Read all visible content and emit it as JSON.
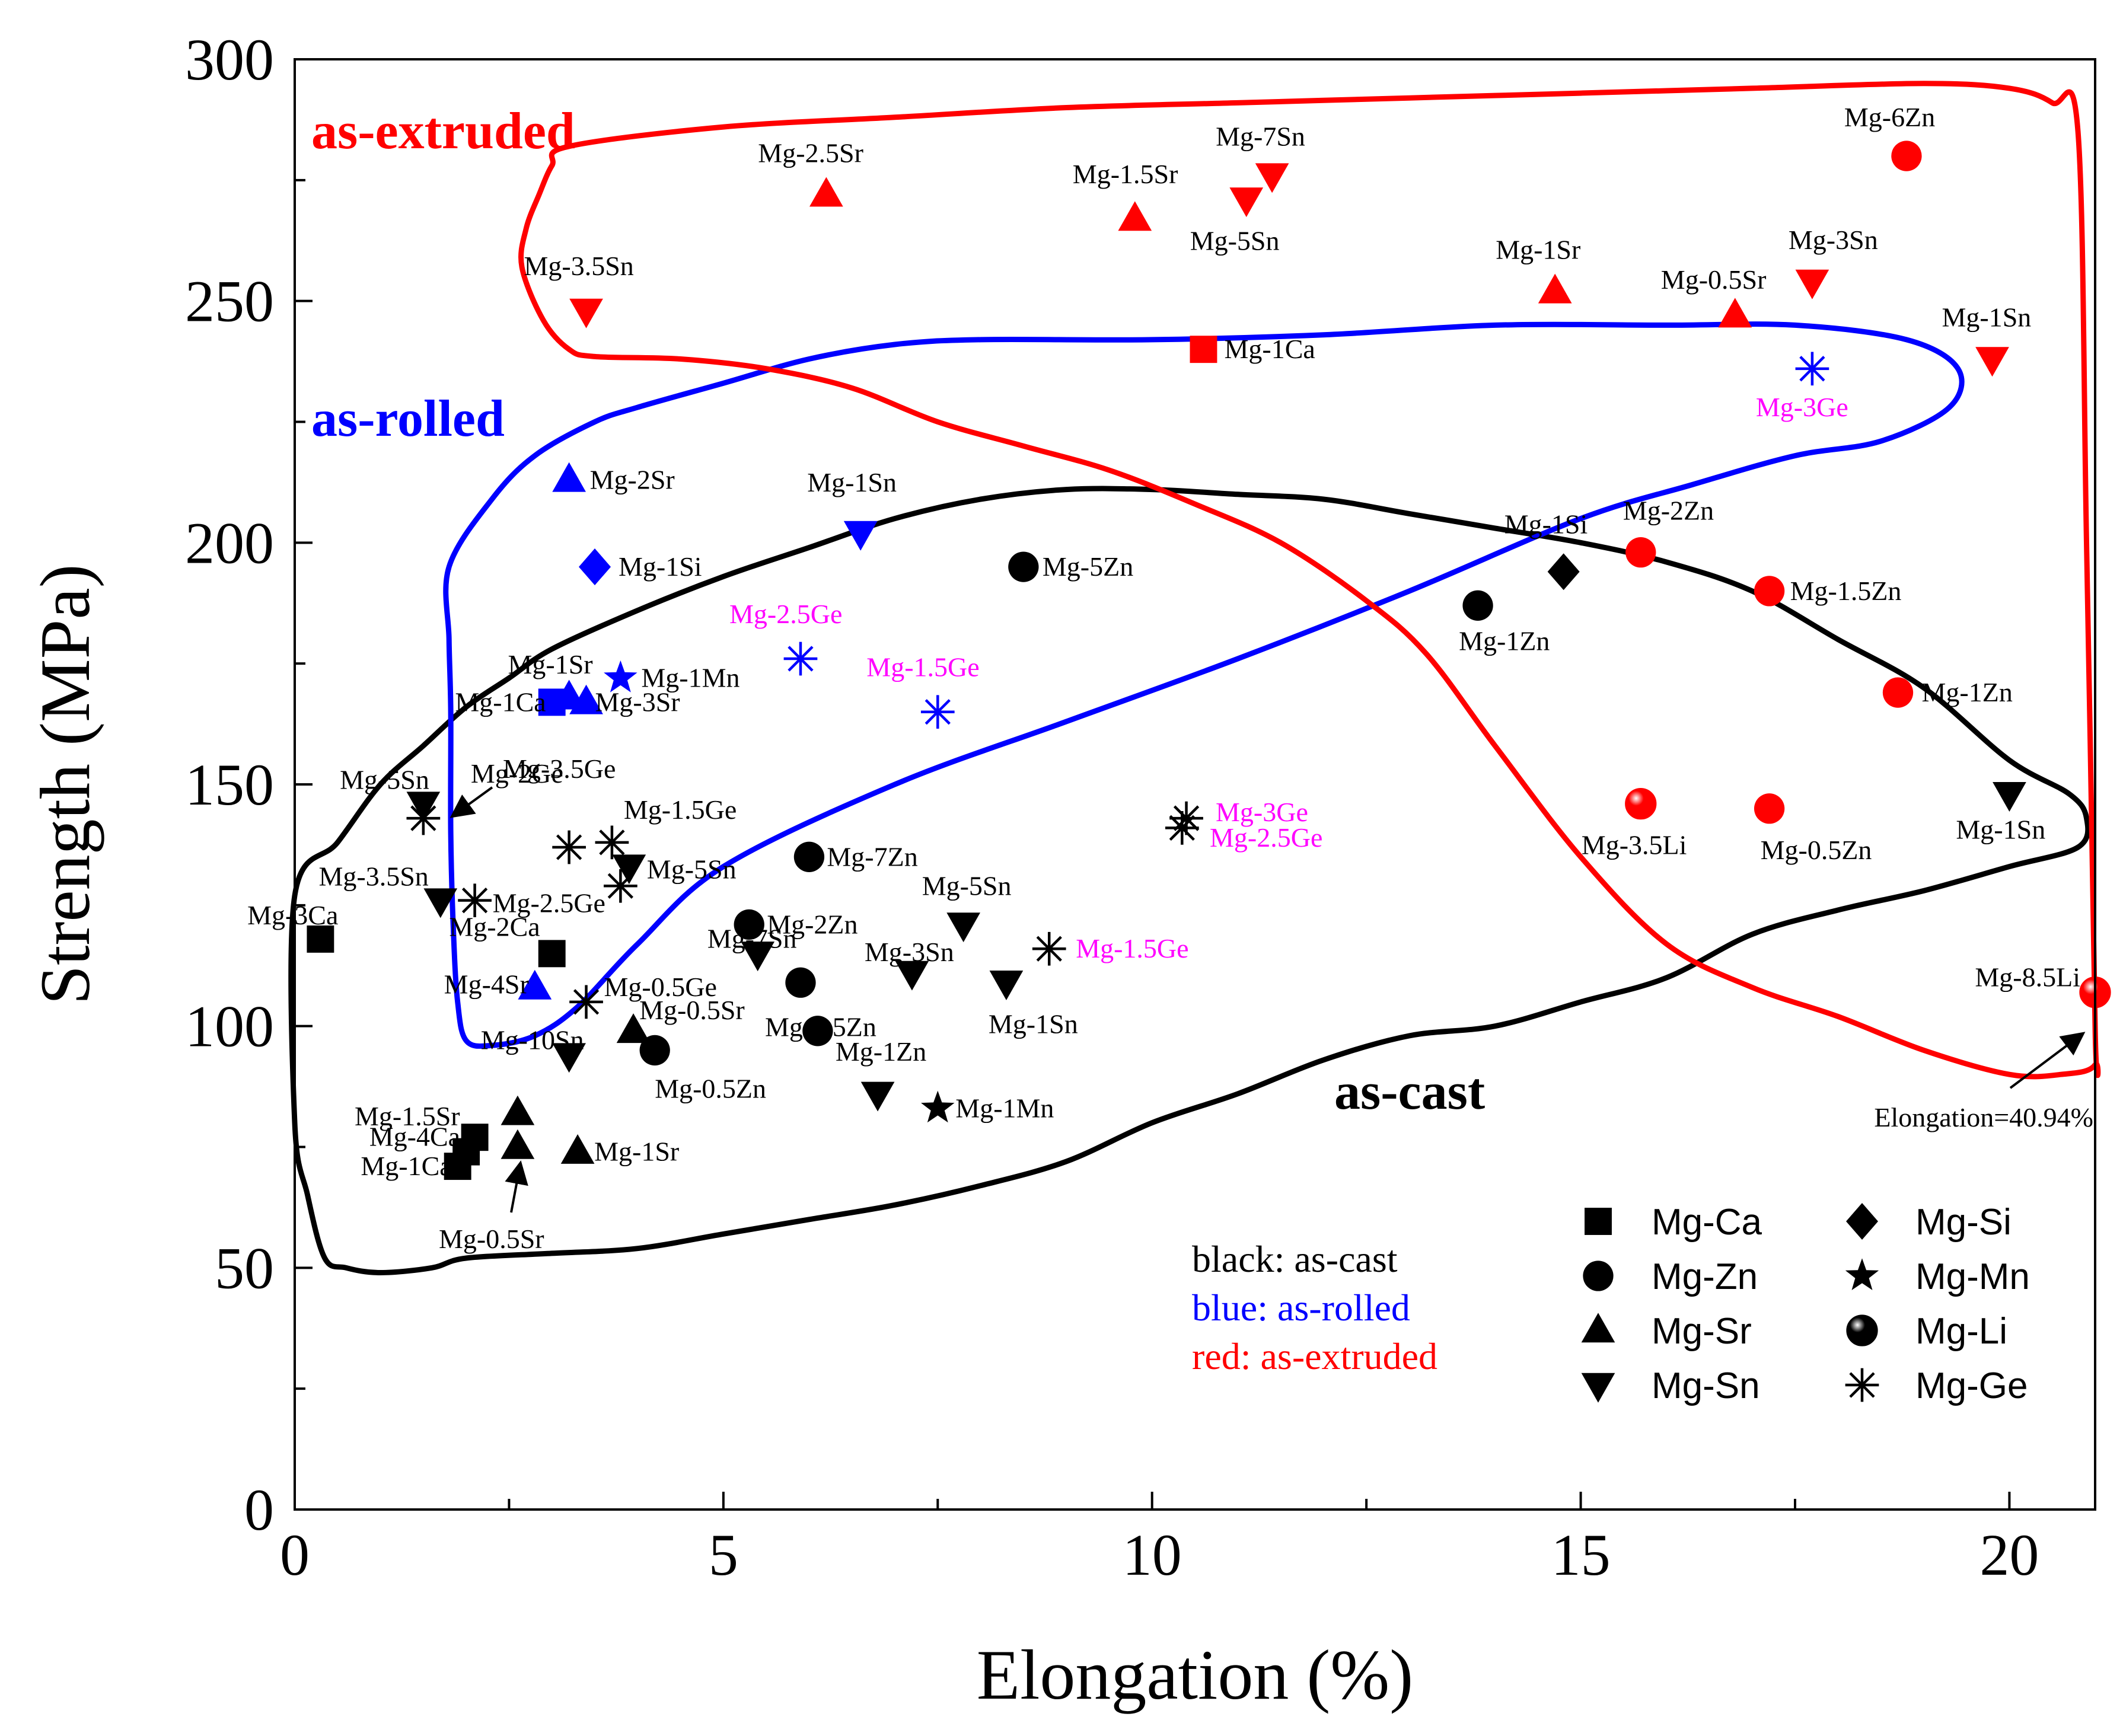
{
  "chart_data": {
    "type": "scatter",
    "xlabel": "Elongation (%)",
    "ylabel": "Strength (MPa)",
    "xlim": [
      0,
      21
    ],
    "ylim": [
      0,
      300
    ],
    "x_ticks": [
      "0",
      "5",
      "10",
      "15",
      "20"
    ],
    "y_ticks": [
      "0",
      "50",
      "100",
      "150",
      "200",
      "250",
      "300"
    ],
    "grid": false,
    "colors": {
      "as-cast": "#000000",
      "as-rolled": "#0000ff",
      "as-extruded": "#ff0000",
      "ge_label": "#ff00ff"
    },
    "regions": [
      {
        "name": "as-cast",
        "label": "as-cast",
        "color": "#000000",
        "outline": [
          [
            0,
            127
          ],
          [
            0.5,
            138
          ],
          [
            1,
            150
          ],
          [
            1.5,
            158
          ],
          [
            2,
            166
          ],
          [
            2.5,
            172
          ],
          [
            3,
            178
          ],
          [
            4,
            186
          ],
          [
            5,
            193
          ],
          [
            6,
            199
          ],
          [
            7,
            205
          ],
          [
            8,
            209
          ],
          [
            9,
            211
          ],
          [
            10,
            211
          ],
          [
            11,
            210
          ],
          [
            12,
            209
          ],
          [
            13,
            206
          ],
          [
            14,
            203
          ],
          [
            15,
            200
          ],
          [
            16,
            196
          ],
          [
            17,
            190
          ],
          [
            18,
            180
          ],
          [
            19,
            170
          ],
          [
            20,
            155
          ],
          [
            20.7,
            148
          ],
          [
            20.9,
            143
          ],
          [
            20.8,
            137
          ],
          [
            20,
            133
          ],
          [
            19,
            128
          ],
          [
            18,
            124
          ],
          [
            17,
            119
          ],
          [
            16,
            110
          ],
          [
            15,
            105
          ],
          [
            14,
            100
          ],
          [
            13,
            98
          ],
          [
            12,
            93
          ],
          [
            11,
            86
          ],
          [
            10,
            80
          ],
          [
            9,
            72
          ],
          [
            8,
            67
          ],
          [
            7,
            63
          ],
          [
            6,
            60
          ],
          [
            5,
            57
          ],
          [
            4,
            54
          ],
          [
            3,
            53
          ],
          [
            2,
            52
          ],
          [
            1.6,
            50
          ],
          [
            1,
            49
          ],
          [
            0.6,
            50
          ],
          [
            0.35,
            52
          ],
          [
            0.15,
            65
          ],
          [
            0,
            80
          ]
        ]
      },
      {
        "name": "as-rolled",
        "label": "as-rolled",
        "color": "#0000ff",
        "outline": [
          [
            1.8,
            195
          ],
          [
            2.3,
            209
          ],
          [
            2.8,
            218
          ],
          [
            3.5,
            225
          ],
          [
            4,
            228
          ],
          [
            5,
            233
          ],
          [
            6,
            238
          ],
          [
            7,
            241
          ],
          [
            8,
            242
          ],
          [
            10,
            242
          ],
          [
            12,
            243
          ],
          [
            14,
            245
          ],
          [
            16,
            245
          ],
          [
            17.5,
            245
          ],
          [
            18.8,
            242
          ],
          [
            19.4,
            236
          ],
          [
            19.3,
            228
          ],
          [
            18.5,
            221
          ],
          [
            17.5,
            218
          ],
          [
            16.3,
            212
          ],
          [
            15,
            205
          ],
          [
            13,
            190
          ],
          [
            11,
            176
          ],
          [
            9,
            163
          ],
          [
            7,
            150
          ],
          [
            5,
            133
          ],
          [
            4,
            117
          ],
          [
            3.3,
            104
          ],
          [
            2.8,
            98
          ],
          [
            2.3,
            96
          ],
          [
            2,
            97
          ],
          [
            1.9,
            105
          ],
          [
            1.85,
            120
          ],
          [
            1.82,
            140
          ],
          [
            1.82,
            165
          ],
          [
            1.8,
            180
          ]
        ]
      },
      {
        "name": "as-extruded",
        "label": "as-extruded",
        "color": "#ff0000",
        "outline": [
          [
            3.2,
            282
          ],
          [
            5,
            286
          ],
          [
            7,
            288
          ],
          [
            9,
            290
          ],
          [
            11,
            291
          ],
          [
            13,
            292
          ],
          [
            15,
            293
          ],
          [
            17,
            294
          ],
          [
            19,
            295
          ],
          [
            20,
            294
          ],
          [
            20.5,
            291
          ],
          [
            20.8,
            285
          ],
          [
            20.9,
            200
          ],
          [
            21,
            100
          ],
          [
            21,
            92
          ],
          [
            20.6,
            90
          ],
          [
            20,
            90
          ],
          [
            19,
            95
          ],
          [
            18,
            102
          ],
          [
            17,
            108
          ],
          [
            16,
            117
          ],
          [
            15,
            135
          ],
          [
            14,
            158
          ],
          [
            13.2,
            177
          ],
          [
            12.5,
            188
          ],
          [
            11.5,
            200
          ],
          [
            10.5,
            208
          ],
          [
            9.5,
            215
          ],
          [
            8.5,
            220
          ],
          [
            7.5,
            225
          ],
          [
            6.5,
            232
          ],
          [
            5.5,
            236
          ],
          [
            4.5,
            238
          ],
          [
            3.5,
            238.5
          ],
          [
            3.2,
            240
          ],
          [
            2.9,
            246
          ],
          [
            2.65,
            257
          ],
          [
            2.7,
            265
          ],
          [
            2.85,
            272
          ],
          [
            3,
            278
          ]
        ]
      }
    ],
    "series": [
      {
        "name": "as-cast",
        "color": "#000000",
        "points": [
          {
            "label": "Mg-3Ca",
            "type": "Mg-Ca",
            "x": 0.3,
            "y": 118
          },
          {
            "label": "Mg-2Ca",
            "type": "Mg-Ca",
            "x": 3.0,
            "y": 115
          },
          {
            "label": "Mg-1.5Sr",
            "type": "Mg-Ca",
            "x": 2.1,
            "y": 77
          },
          {
            "label": "Mg-4Ca",
            "type": "Mg-Ca",
            "x": 2.0,
            "y": 74
          },
          {
            "label": "Mg-1Ca",
            "type": "Mg-Ca",
            "x": 1.9,
            "y": 71
          },
          {
            "label": "Mg-5Zn",
            "type": "Mg-Zn",
            "x": 8.5,
            "y": 195
          },
          {
            "label": "Mg-1Zn",
            "type": "Mg-Zn",
            "x": 13.8,
            "y": 187
          },
          {
            "label": "Mg-7Zn",
            "type": "Mg-Zn",
            "x": 6.0,
            "y": 135
          },
          {
            "label": "Mg-2Zn",
            "type": "Mg-Zn",
            "x": 5.3,
            "y": 121
          },
          {
            "label": "Mg-1.5Zn",
            "type": "Mg-Zn",
            "x": 5.9,
            "y": 109
          },
          {
            "label": "Mg-1Zn",
            "type": "Mg-Zn",
            "x": 6.1,
            "y": 99
          },
          {
            "label": "Mg-0.5Zn",
            "type": "Mg-Zn",
            "x": 4.2,
            "y": 95
          },
          {
            "label": "Mg-0.5Sr",
            "type": "Mg-Sr",
            "x": 3.95,
            "y": 99
          },
          {
            "label": "Mg-1Sr",
            "type": "Mg-Sr",
            "x": 3.3,
            "y": 74
          },
          {
            "label": "",
            "type": "Mg-Sr",
            "x": 2.6,
            "y": 82
          },
          {
            "label": "",
            "type": "Mg-Sr",
            "x": 2.6,
            "y": 75
          },
          {
            "label": "Mg-5Sn",
            "type": "Mg-Sn",
            "x": 1.5,
            "y": 146
          },
          {
            "label": "Mg-3.5Sn",
            "type": "Mg-Sn",
            "x": 1.7,
            "y": 126
          },
          {
            "label": "Mg-5Sn",
            "type": "Mg-Sn",
            "x": 3.9,
            "y": 133
          },
          {
            "label": "Mg-7Sn",
            "type": "Mg-Sn",
            "x": 5.4,
            "y": 115
          },
          {
            "label": "Mg-5Sn",
            "type": "Mg-Sn",
            "x": 7.8,
            "y": 121
          },
          {
            "label": "Mg-3Sn",
            "type": "Mg-Sn",
            "x": 7.2,
            "y": 111
          },
          {
            "label": "Mg-1Sn",
            "type": "Mg-Sn",
            "x": 8.3,
            "y": 109
          },
          {
            "label": "Mg-10Sn",
            "type": "Mg-Sn",
            "x": 3.2,
            "y": 94
          },
          {
            "label": "",
            "type": "Mg-Sn",
            "x": 6.8,
            "y": 86
          },
          {
            "label": "Mg-1Sn",
            "type": "Mg-Sn",
            "x": 20.0,
            "y": 148
          },
          {
            "label": "Mg-1Si",
            "type": "Mg-Si",
            "x": 14.8,
            "y": 194
          },
          {
            "label": "Mg-1Mn",
            "type": "Mg-Mn",
            "x": 7.5,
            "y": 83
          },
          {
            "label": "Mg-2Ge",
            "type": "Mg-Ge",
            "x": 1.5,
            "y": 143
          },
          {
            "label": "Mg-1.5Ge",
            "type": "Mg-Ge",
            "x": 3.7,
            "y": 138
          },
          {
            "label": "",
            "type": "Mg-Ge",
            "x": 3.2,
            "y": 137
          },
          {
            "label": "",
            "type": "Mg-Ge",
            "x": 3.8,
            "y": 129
          },
          {
            "label": "Mg-2.5Ge",
            "type": "Mg-Ge",
            "x": 2.1,
            "y": 126
          },
          {
            "label": "Mg-0.5Ge",
            "type": "Mg-Ge",
            "x": 3.4,
            "y": 105
          },
          {
            "label": "",
            "type": "Mg-Ge",
            "x": 10.4,
            "y": 143
          },
          {
            "label": "",
            "type": "Mg-Ge",
            "x": 10.35,
            "y": 141
          },
          {
            "label": "Mg-1.5Ge",
            "type": "Mg-Ge",
            "x": 8.8,
            "y": 116
          }
        ]
      },
      {
        "name": "as-rolled",
        "color": "#0000ff",
        "points": [
          {
            "label": "Mg-2Sr",
            "type": "Mg-Sr",
            "x": 3.2,
            "y": 213
          },
          {
            "label": "Mg-1Si",
            "type": "Mg-Si",
            "x": 3.5,
            "y": 195
          },
          {
            "label": "Mg-1Sn",
            "type": "Mg-Sn",
            "x": 6.6,
            "y": 202
          },
          {
            "label": "Mg-1Mn",
            "type": "Mg-Mn",
            "x": 3.8,
            "y": 172
          },
          {
            "label": "Mg-1Sr",
            "type": "Mg-Sr",
            "x": 3.2,
            "y": 168
          },
          {
            "label": "Mg-1Ca",
            "type": "Mg-Ca",
            "x": 3.0,
            "y": 167
          },
          {
            "label": "Mg-3Sr",
            "type": "Mg-Sr",
            "x": 3.4,
            "y": 167
          },
          {
            "label": "Mg-4Sr",
            "type": "Mg-Sr",
            "x": 2.8,
            "y": 108
          },
          {
            "label": "Mg-2.5Ge",
            "type": "Mg-Ge",
            "x": 5.9,
            "y": 176
          },
          {
            "label": "Mg-1.5Ge",
            "type": "Mg-Ge",
            "x": 7.5,
            "y": 165
          },
          {
            "label": "Mg-3Ge",
            "type": "Mg-Ge",
            "x": 17.7,
            "y": 236
          }
        ]
      },
      {
        "name": "as-extruded",
        "color": "#ff0000",
        "points": [
          {
            "label": "Mg-7Sn",
            "type": "Mg-Sn",
            "x": 11.4,
            "y": 276
          },
          {
            "label": "Mg-5Sn",
            "type": "Mg-Sn",
            "x": 11.1,
            "y": 271
          },
          {
            "label": "Mg-2.5Sr",
            "type": "Mg-Sr",
            "x": 6.2,
            "y": 272
          },
          {
            "label": "Mg-1.5Sr",
            "type": "Mg-Sr",
            "x": 9.8,
            "y": 267
          },
          {
            "label": "Mg-6Zn",
            "type": "Mg-Zn",
            "x": 18.8,
            "y": 280
          },
          {
            "label": "Mg-3.5Sn",
            "type": "Mg-Sn",
            "x": 3.4,
            "y": 248
          },
          {
            "label": "Mg-1Sr",
            "type": "Mg-Sr",
            "x": 14.7,
            "y": 252
          },
          {
            "label": "Mg-0.5Sr",
            "type": "Mg-Sr",
            "x": 16.8,
            "y": 247
          },
          {
            "label": "Mg-3Sn",
            "type": "Mg-Sn",
            "x": 17.7,
            "y": 254
          },
          {
            "label": "Mg-1Sn",
            "type": "Mg-Sn",
            "x": 19.8,
            "y": 238
          },
          {
            "label": "Mg-1Ca",
            "type": "Mg-Ca",
            "x": 10.6,
            "y": 240
          },
          {
            "label": "Mg-2Zn",
            "type": "Mg-Zn",
            "x": 15.7,
            "y": 198
          },
          {
            "label": "Mg-1.5Zn",
            "type": "Mg-Zn",
            "x": 17.2,
            "y": 190
          },
          {
            "label": "Mg-1Zn",
            "type": "Mg-Zn",
            "x": 18.7,
            "y": 169
          },
          {
            "label": "Mg-3.5Li",
            "type": "Mg-Li",
            "x": 15.7,
            "y": 146
          },
          {
            "label": "Mg-0.5Zn",
            "type": "Mg-Zn",
            "x": 17.2,
            "y": 145
          },
          {
            "label": "Mg-8.5Li",
            "type": "Mg-Li",
            "x": 21.0,
            "y": 107
          }
        ]
      }
    ],
    "annotations": [
      "Elongation=40.94%",
      "Mg-0.5Sr",
      "Mg-3.5Ge",
      "Mg-3Ge",
      "Mg-2.5Ge"
    ],
    "legend": {
      "position": "bottom-right",
      "items": [
        {
          "label": "Mg-Ca",
          "marker": "square"
        },
        {
          "label": "Mg-Zn",
          "marker": "circle"
        },
        {
          "label": "Mg-Sr",
          "marker": "triangle-up"
        },
        {
          "label": "Mg-Sn",
          "marker": "triangle-down"
        },
        {
          "label": "Mg-Si",
          "marker": "diamond"
        },
        {
          "label": "Mg-Mn",
          "marker": "star"
        },
        {
          "label": "Mg-Li",
          "marker": "sphere"
        },
        {
          "label": "Mg-Ge",
          "marker": "asterisk"
        }
      ]
    },
    "color_note": [
      "black: as-cast",
      "blue: as-rolled",
      "red: as-extruded"
    ]
  }
}
